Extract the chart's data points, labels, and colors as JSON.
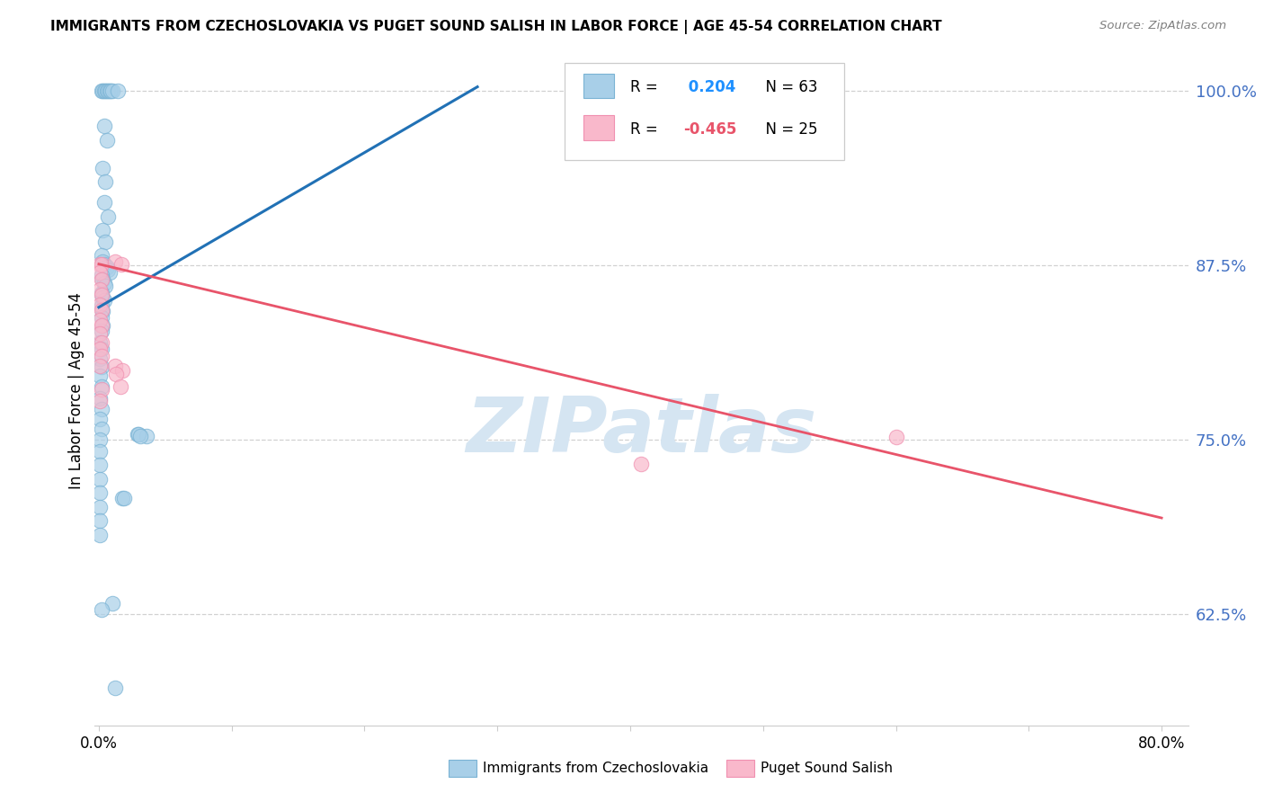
{
  "title": "IMMIGRANTS FROM CZECHOSLOVAKIA VS PUGET SOUND SALISH IN LABOR FORCE | AGE 45-54 CORRELATION CHART",
  "source": "Source: ZipAtlas.com",
  "ylabel": "In Labor Force | Age 45-54",
  "xlim": [
    -0.003,
    0.82
  ],
  "ylim": [
    0.545,
    1.025
  ],
  "yticks": [
    0.625,
    0.75,
    0.875,
    1.0
  ],
  "ytick_labels": [
    "62.5%",
    "75.0%",
    "87.5%",
    "100.0%"
  ],
  "xticks": [
    0.0,
    0.1,
    0.2,
    0.3,
    0.4,
    0.5,
    0.6,
    0.7,
    0.8
  ],
  "xtick_labels_show": [
    "0.0%",
    "",
    "",
    "",
    "",
    "",
    "",
    "",
    "80.0%"
  ],
  "blue_r": 0.204,
  "blue_n": 63,
  "pink_r": -0.465,
  "pink_n": 25,
  "legend_blue_label": "Immigrants from Czechoslovakia",
  "legend_pink_label": "Puget Sound Salish",
  "blue_scatter_color": "#a8cfe8",
  "blue_edge_color": "#7ab3d4",
  "pink_scatter_color": "#f9b8cb",
  "pink_edge_color": "#f090b0",
  "blue_line_color": "#2171b5",
  "pink_line_color": "#e8546a",
  "blue_r_color": "#1e90ff",
  "pink_r_color": "#e8546a",
  "watermark_color": "#d5e5f2",
  "blue_line_x0": 0.0,
  "blue_line_y0": 0.845,
  "blue_line_x1": 0.285,
  "blue_line_y1": 1.003,
  "pink_line_x0": 0.0,
  "pink_line_y0": 0.876,
  "pink_line_x1": 0.8,
  "pink_line_y1": 0.694,
  "blue_dots": [
    [
      0.002,
      1.0
    ],
    [
      0.003,
      1.0
    ],
    [
      0.004,
      1.0
    ],
    [
      0.005,
      1.0
    ],
    [
      0.006,
      1.0
    ],
    [
      0.007,
      1.0
    ],
    [
      0.008,
      1.0
    ],
    [
      0.009,
      1.0
    ],
    [
      0.01,
      1.0
    ],
    [
      0.014,
      1.0
    ],
    [
      0.004,
      0.975
    ],
    [
      0.006,
      0.965
    ],
    [
      0.003,
      0.945
    ],
    [
      0.005,
      0.935
    ],
    [
      0.004,
      0.92
    ],
    [
      0.007,
      0.91
    ],
    [
      0.003,
      0.9
    ],
    [
      0.005,
      0.892
    ],
    [
      0.002,
      0.882
    ],
    [
      0.003,
      0.878
    ],
    [
      0.004,
      0.876
    ],
    [
      0.006,
      0.874
    ],
    [
      0.007,
      0.872
    ],
    [
      0.008,
      0.87
    ],
    [
      0.002,
      0.868
    ],
    [
      0.003,
      0.865
    ],
    [
      0.004,
      0.862
    ],
    [
      0.005,
      0.86
    ],
    [
      0.002,
      0.855
    ],
    [
      0.003,
      0.852
    ],
    [
      0.004,
      0.85
    ],
    [
      0.002,
      0.846
    ],
    [
      0.003,
      0.842
    ],
    [
      0.002,
      0.838
    ],
    [
      0.003,
      0.832
    ],
    [
      0.002,
      0.828
    ],
    [
      0.001,
      0.82
    ],
    [
      0.002,
      0.815
    ],
    [
      0.001,
      0.808
    ],
    [
      0.002,
      0.802
    ],
    [
      0.001,
      0.796
    ],
    [
      0.002,
      0.788
    ],
    [
      0.001,
      0.78
    ],
    [
      0.002,
      0.772
    ],
    [
      0.001,
      0.765
    ],
    [
      0.002,
      0.758
    ],
    [
      0.001,
      0.75
    ],
    [
      0.001,
      0.742
    ],
    [
      0.001,
      0.732
    ],
    [
      0.001,
      0.722
    ],
    [
      0.001,
      0.712
    ],
    [
      0.001,
      0.702
    ],
    [
      0.001,
      0.692
    ],
    [
      0.001,
      0.682
    ],
    [
      0.029,
      0.754
    ],
    [
      0.036,
      0.753
    ],
    [
      0.03,
      0.754
    ],
    [
      0.031,
      0.753
    ],
    [
      0.018,
      0.708
    ],
    [
      0.019,
      0.708
    ],
    [
      0.01,
      0.633
    ],
    [
      0.012,
      0.572
    ],
    [
      0.002,
      0.628
    ]
  ],
  "pink_dots": [
    [
      0.001,
      0.876
    ],
    [
      0.002,
      0.876
    ],
    [
      0.001,
      0.87
    ],
    [
      0.002,
      0.865
    ],
    [
      0.001,
      0.858
    ],
    [
      0.002,
      0.854
    ],
    [
      0.012,
      0.878
    ],
    [
      0.017,
      0.876
    ],
    [
      0.001,
      0.847
    ],
    [
      0.002,
      0.843
    ],
    [
      0.001,
      0.836
    ],
    [
      0.002,
      0.832
    ],
    [
      0.001,
      0.826
    ],
    [
      0.002,
      0.82
    ],
    [
      0.012,
      0.803
    ],
    [
      0.018,
      0.8
    ],
    [
      0.001,
      0.815
    ],
    [
      0.002,
      0.81
    ],
    [
      0.001,
      0.803
    ],
    [
      0.013,
      0.797
    ],
    [
      0.016,
      0.788
    ],
    [
      0.002,
      0.786
    ],
    [
      0.001,
      0.778
    ],
    [
      0.408,
      0.733
    ],
    [
      0.6,
      0.752
    ]
  ]
}
